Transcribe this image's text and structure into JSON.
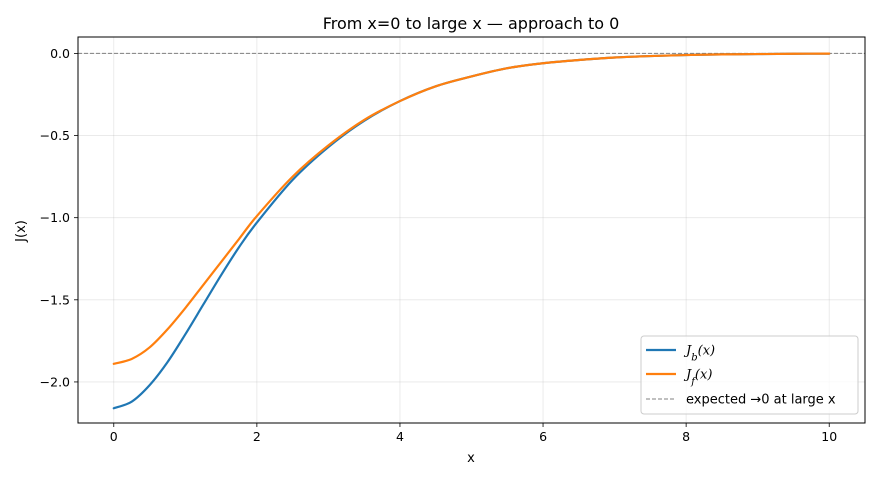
{
  "chart_data": {
    "type": "line",
    "title": "From x=0 to large x — approach to 0",
    "xlabel": "x",
    "ylabel": "J(x)",
    "xlim": [
      -0.5,
      10.5
    ],
    "ylim": [
      -2.25,
      0.1
    ],
    "xticks": [
      0,
      2,
      4,
      6,
      8,
      10
    ],
    "xtick_labels": [
      "0",
      "2",
      "4",
      "6",
      "8",
      "10"
    ],
    "yticks": [
      0.0,
      -0.5,
      -1.0,
      -1.5,
      -2.0
    ],
    "ytick_labels": [
      "0.0",
      "−0.5",
      "−1.0",
      "−1.5",
      "−2.0"
    ],
    "grid": true,
    "legend_position": "lower-right",
    "series": [
      {
        "name": "J_b(x)",
        "color": "#1f77b4",
        "x": [
          0,
          0.25,
          0.5,
          0.75,
          1.0,
          1.25,
          1.5,
          1.75,
          2.0,
          2.5,
          3.0,
          3.5,
          4.0,
          4.5,
          5.0,
          5.5,
          6.0,
          6.5,
          7.0,
          7.5,
          8.0,
          8.5,
          9.0,
          9.5,
          10.0
        ],
        "y": [
          -2.16,
          -2.12,
          -2.02,
          -1.88,
          -1.71,
          -1.53,
          -1.35,
          -1.18,
          -1.03,
          -0.77,
          -0.57,
          -0.41,
          -0.29,
          -0.2,
          -0.14,
          -0.09,
          -0.06,
          -0.04,
          -0.025,
          -0.016,
          -0.01,
          -0.006,
          -0.004,
          -0.002,
          -0.001
        ]
      },
      {
        "name": "J_f(x)",
        "color": "#ff7f0e",
        "x": [
          0,
          0.25,
          0.5,
          0.75,
          1.0,
          1.25,
          1.5,
          1.75,
          2.0,
          2.5,
          3.0,
          3.5,
          4.0,
          4.5,
          5.0,
          5.5,
          6.0,
          6.5,
          7.0,
          7.5,
          8.0,
          8.5,
          9.0,
          9.5,
          10.0
        ],
        "y": [
          -1.89,
          -1.86,
          -1.79,
          -1.68,
          -1.55,
          -1.41,
          -1.27,
          -1.13,
          -0.99,
          -0.75,
          -0.56,
          -0.405,
          -0.29,
          -0.2,
          -0.14,
          -0.09,
          -0.06,
          -0.04,
          -0.025,
          -0.016,
          -0.01,
          -0.006,
          -0.004,
          -0.002,
          -0.001
        ]
      }
    ],
    "reference_line": {
      "y": 0,
      "color": "#808080",
      "label": "expected →0 at large x"
    }
  }
}
